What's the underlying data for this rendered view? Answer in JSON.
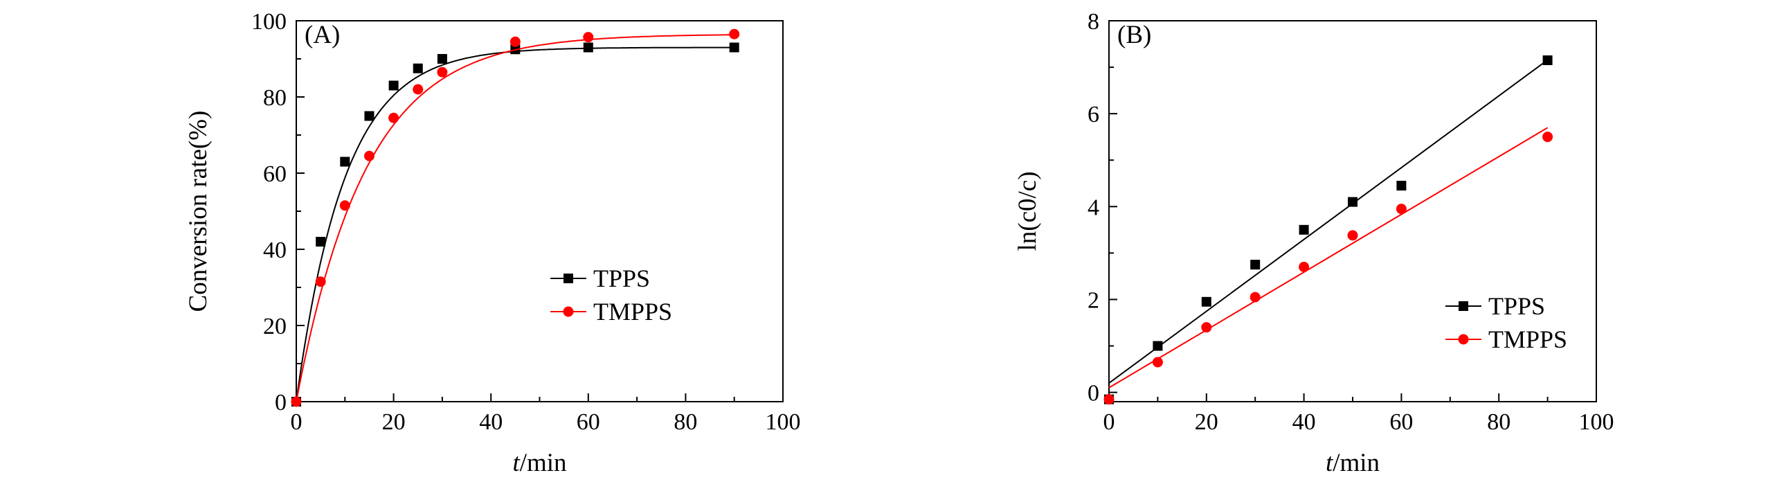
{
  "chart_data": [
    {
      "type": "line",
      "panel_label": "(A)",
      "xlabel_italic": "t",
      "xlabel_rest": "/min",
      "ylabel": "Conversion rate(%)",
      "xlim": [
        0,
        100
      ],
      "ylim": [
        0,
        100
      ],
      "xticks": [
        0,
        20,
        40,
        60,
        80,
        100
      ],
      "yticks": [
        0,
        20,
        40,
        60,
        80,
        100
      ],
      "grid": false,
      "legend_position": "center-right",
      "series": [
        {
          "name": "TPPS",
          "color": "#000000",
          "marker": "square",
          "x": [
            0,
            5,
            10,
            15,
            20,
            25,
            30,
            45,
            60,
            90
          ],
          "y": [
            0,
            42,
            63,
            75,
            83,
            87.5,
            90,
            92.5,
            93,
            93
          ],
          "fit": {
            "kind": "exponential",
            "ymax": 93,
            "k": 0.1
          }
        },
        {
          "name": "TMPPS",
          "color": "#ff0000",
          "marker": "circle",
          "x": [
            0,
            5,
            10,
            15,
            20,
            25,
            30,
            45,
            60,
            90
          ],
          "y": [
            0,
            31.5,
            51.5,
            64.5,
            74.5,
            82,
            86.5,
            94.5,
            95.7,
            96.5
          ],
          "fit": {
            "kind": "exponential",
            "ymax": 96.5,
            "k": 0.07
          }
        }
      ]
    },
    {
      "type": "scatter",
      "panel_label": "(B)",
      "xlabel_italic": "t",
      "xlabel_rest": "/min",
      "ylabel": "ln(c0/c)",
      "xlim": [
        0,
        100
      ],
      "ylim": [
        -0.2,
        8
      ],
      "xticks": [
        0,
        20,
        40,
        60,
        80,
        100
      ],
      "yticks": [
        0,
        2,
        4,
        6,
        8
      ],
      "grid": false,
      "legend_position": "bottom-right",
      "series": [
        {
          "name": "TPPS",
          "color": "#000000",
          "marker": "square",
          "x": [
            0,
            10,
            20,
            30,
            40,
            50,
            60,
            90
          ],
          "y": [
            -0.15,
            1.0,
            1.95,
            2.75,
            3.5,
            4.1,
            4.45,
            7.15
          ],
          "fit": {
            "kind": "linear",
            "slope": 0.0773,
            "intercept": 0.2
          }
        },
        {
          "name": "TMPPS",
          "color": "#ff0000",
          "marker": "circle",
          "x": [
            0,
            10,
            20,
            30,
            40,
            50,
            60,
            90
          ],
          "y": [
            -0.15,
            0.65,
            1.4,
            2.05,
            2.7,
            3.38,
            3.95,
            5.5
          ],
          "fit": {
            "kind": "linear",
            "slope": 0.0622,
            "intercept": 0.1
          }
        }
      ]
    }
  ]
}
